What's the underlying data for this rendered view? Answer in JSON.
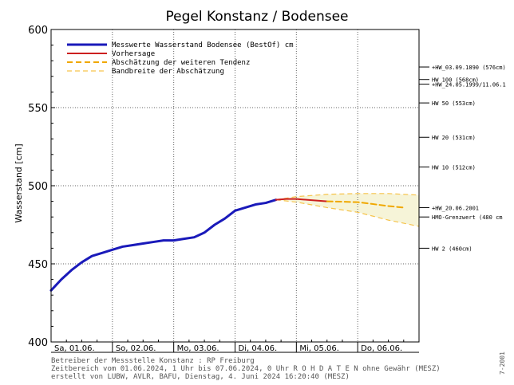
{
  "chart_data": {
    "type": "line",
    "title": "Pegel Konstanz / Bodensee",
    "ylabel": "Wasserstand [cm]",
    "xlabel": "",
    "ylim": [
      400,
      600
    ],
    "yticks": [
      400,
      450,
      500,
      550,
      600
    ],
    "x_range": [
      "2024-06-01 00:00",
      "2024-06-07 00:00"
    ],
    "x_tick_labels": [
      "Sa, 01.06.",
      "So, 02.06.",
      "Mo, 03.06.",
      "Di, 04.06.",
      "Mi, 05.06.",
      "Do, 06.06."
    ],
    "grid": true,
    "legend_position": "top-left",
    "colors": {
      "measured": "#1a1aba",
      "forecast": "#cc1f1f",
      "tendency": "#f0a800",
      "band_line": "#f6c34a",
      "band_fill": "#f6f4d8"
    },
    "series": [
      {
        "name": "Messwerte Wasserstand Bodensee  (BestOf)  cm",
        "style": "solid",
        "points": [
          [
            "2024-06-01 00:00",
            433
          ],
          [
            "2024-06-01 04:00",
            440
          ],
          [
            "2024-06-01 08:00",
            446
          ],
          [
            "2024-06-01 12:00",
            451
          ],
          [
            "2024-06-01 16:00",
            455
          ],
          [
            "2024-06-01 20:00",
            457
          ],
          [
            "2024-06-02 00:00",
            459
          ],
          [
            "2024-06-02 04:00",
            461
          ],
          [
            "2024-06-02 08:00",
            462
          ],
          [
            "2024-06-02 12:00",
            463
          ],
          [
            "2024-06-02 16:00",
            464
          ],
          [
            "2024-06-02 20:00",
            465
          ],
          [
            "2024-06-03 00:00",
            465
          ],
          [
            "2024-06-03 04:00",
            466
          ],
          [
            "2024-06-03 08:00",
            467
          ],
          [
            "2024-06-03 12:00",
            470
          ],
          [
            "2024-06-03 16:00",
            475
          ],
          [
            "2024-06-03 20:00",
            479
          ],
          [
            "2024-06-04 00:00",
            484
          ],
          [
            "2024-06-04 04:00",
            486
          ],
          [
            "2024-06-04 08:00",
            488
          ],
          [
            "2024-06-04 12:00",
            489
          ],
          [
            "2024-06-04 16:00",
            491
          ]
        ]
      },
      {
        "name": "Vorhersage",
        "style": "solid",
        "points": [
          [
            "2024-06-04 16:00",
            491
          ],
          [
            "2024-06-04 20:00",
            491.5
          ],
          [
            "2024-06-05 00:00",
            491.5
          ],
          [
            "2024-06-05 04:00",
            491
          ],
          [
            "2024-06-05 08:00",
            490.5
          ],
          [
            "2024-06-05 12:00",
            490
          ]
        ]
      },
      {
        "name": "Abschätzung der weiteren Tendenz",
        "style": "dashed",
        "points": [
          [
            "2024-06-05 12:00",
            490
          ],
          [
            "2024-06-06 00:00",
            489.5
          ],
          [
            "2024-06-06 12:00",
            487
          ],
          [
            "2024-06-06 18:00",
            486
          ]
        ]
      },
      {
        "name": "Bandbreite der Abschätzung",
        "style": "dashed",
        "upper": [
          [
            "2024-06-04 16:00",
            491
          ],
          [
            "2024-06-05 00:00",
            493
          ],
          [
            "2024-06-05 12:00",
            494.5
          ],
          [
            "2024-06-06 00:00",
            495
          ],
          [
            "2024-06-06 12:00",
            495
          ],
          [
            "2024-06-07 00:00",
            494
          ]
        ],
        "lower": [
          [
            "2024-06-04 16:00",
            491
          ],
          [
            "2024-06-05 00:00",
            489.5
          ],
          [
            "2024-06-05 12:00",
            486
          ],
          [
            "2024-06-06 00:00",
            483
          ],
          [
            "2024-06-06 12:00",
            478
          ],
          [
            "2024-06-07 00:00",
            474
          ]
        ]
      }
    ],
    "reference_levels": [
      {
        "label": "+HW_03.09.1890 (576cm)",
        "value": 576
      },
      {
        "label": "HW 100 (568cm)",
        "value": 568
      },
      {
        "label": "+HW_24.05.1999/11.06.1",
        "value": 565
      },
      {
        "label": "HW 50 (553cm)",
        "value": 553
      },
      {
        "label": "HW 20 (531cm)",
        "value": 531
      },
      {
        "label": "HW 10 (512cm)",
        "value": 512
      },
      {
        "label": "+HW_20.06.2001",
        "value": 486
      },
      {
        "label": "HMO-Grenzwert (480 cm",
        "value": 480
      },
      {
        "label": "HW 2 (460cm)",
        "value": 460
      }
    ]
  },
  "footer": {
    "line1": "Betreiber der Messstelle Konstanz : RP Freiburg",
    "line2": "Zeitbereich vom 01.06.2024, 1 Uhr bis 07.06.2024, 0 Uhr     R O H D A T E N ohne Gewähr (MESZ)",
    "line3": "erstellt von LUBW, AVLR, BAFU, Dienstag, 4. Juni 2024 16:20:40 (MESZ)",
    "code": "7-2001"
  }
}
